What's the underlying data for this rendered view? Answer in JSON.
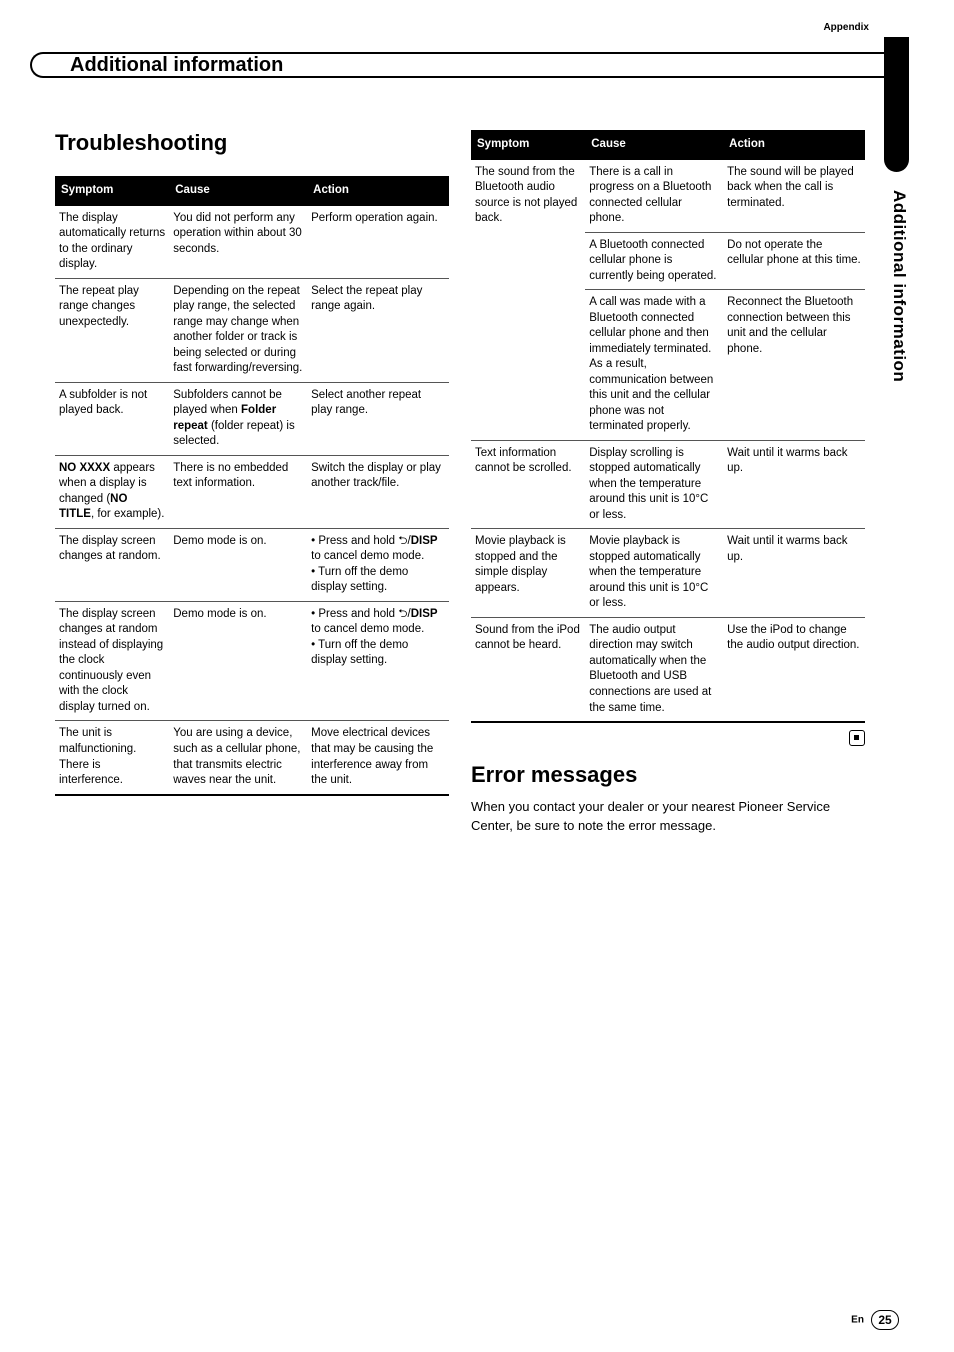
{
  "header": {
    "appendix": "Appendix",
    "title": "Additional information"
  },
  "sideTab": {
    "color": "#000000"
  },
  "vertTitle": "Additional information",
  "headings": {
    "troubleshooting": "Troubleshooting",
    "errorMessages": "Error messages"
  },
  "tableHeaders": {
    "symptom": "Symptom",
    "cause": "Cause",
    "action": "Action"
  },
  "left": {
    "rows": [
      {
        "s": "The display automatically returns to the ordinary display.",
        "c": "You did not perform any operation within about 30 seconds.",
        "a": "Perform operation again."
      },
      {
        "s": "The repeat play range changes unexpectedly.",
        "c": "Depending on the repeat play range, the selected range may change when another folder or track is being selected or during fast forwarding/reversing.",
        "a": "Select the repeat play range again."
      },
      {
        "s": "A subfolder is not played back.",
        "c": "Subfolders cannot be played when <b>Folder repeat</b> (folder repeat) is selected.",
        "a": "Select another repeat play range."
      },
      {
        "s": "<b>NO XXXX</b> appears when a display is changed (<b>NO TITLE</b>, for example).",
        "c": "There is no embedded text information.",
        "a": "Switch the display or play another track/file."
      },
      {
        "s": "The display screen changes at random.",
        "c": "Demo mode is on.",
        "a": "• Press and hold <span class='icon-return'>⮌</span>/<b>DISP</b> to cancel demo mode.<br>• Turn off the demo display setting."
      },
      {
        "s": "The display screen changes at random instead of displaying the clock continuously even with the clock display turned on.",
        "c": "Demo mode is on.",
        "a": "• Press and hold <span class='icon-return'>⮌</span>/<b>DISP</b> to cancel demo mode.<br>• Turn off the demo display setting."
      },
      {
        "s": "The unit is malfunctioning. There is interference.",
        "c": "You are using a device, such as a cellular phone, that transmits electric waves near the unit.",
        "a": "Move electrical devices that may be causing the interference away from the unit."
      }
    ]
  },
  "right": {
    "rows": [
      {
        "s": "The sound from the Bluetooth audio source is not played back.",
        "c": "There is a call in progress on a Bluetooth connected cellular phone.",
        "a": "The sound will be played back when the call is terminated.",
        "rowspanSymptom": 3
      },
      {
        "s": "",
        "c": "A Bluetooth connected cellular phone is currently being operated.",
        "a": "Do not operate the cellular phone at this time."
      },
      {
        "s": "",
        "c": "A call was made with a Bluetooth connected cellular phone and then immediately terminated. As a result, communication between this unit and the cellular phone was not terminated properly.",
        "a": "Reconnect the Bluetooth connection between this unit and the cellular phone."
      },
      {
        "s": "Text information cannot be scrolled.",
        "c": "Display scrolling is stopped automatically when the temperature around this unit is 10°C or less.",
        "a": "Wait until it warms back up."
      },
      {
        "s": "Movie playback is stopped and the simple display appears.",
        "c": "Movie playback is stopped automatically when the temperature around this unit is 10°C or less.",
        "a": "Wait until it warms back up."
      },
      {
        "s": "Sound from the iPod cannot be heard.",
        "c": "The audio output direction may switch automatically when the Bluetooth and USB connections are used at the same time.",
        "a": "Use the iPod to change the audio output direction."
      }
    ]
  },
  "errorPara": "When you contact your dealer or your nearest Pioneer Service Center, be sure to note the error message.",
  "footer": {
    "en": "En",
    "page": "25"
  }
}
